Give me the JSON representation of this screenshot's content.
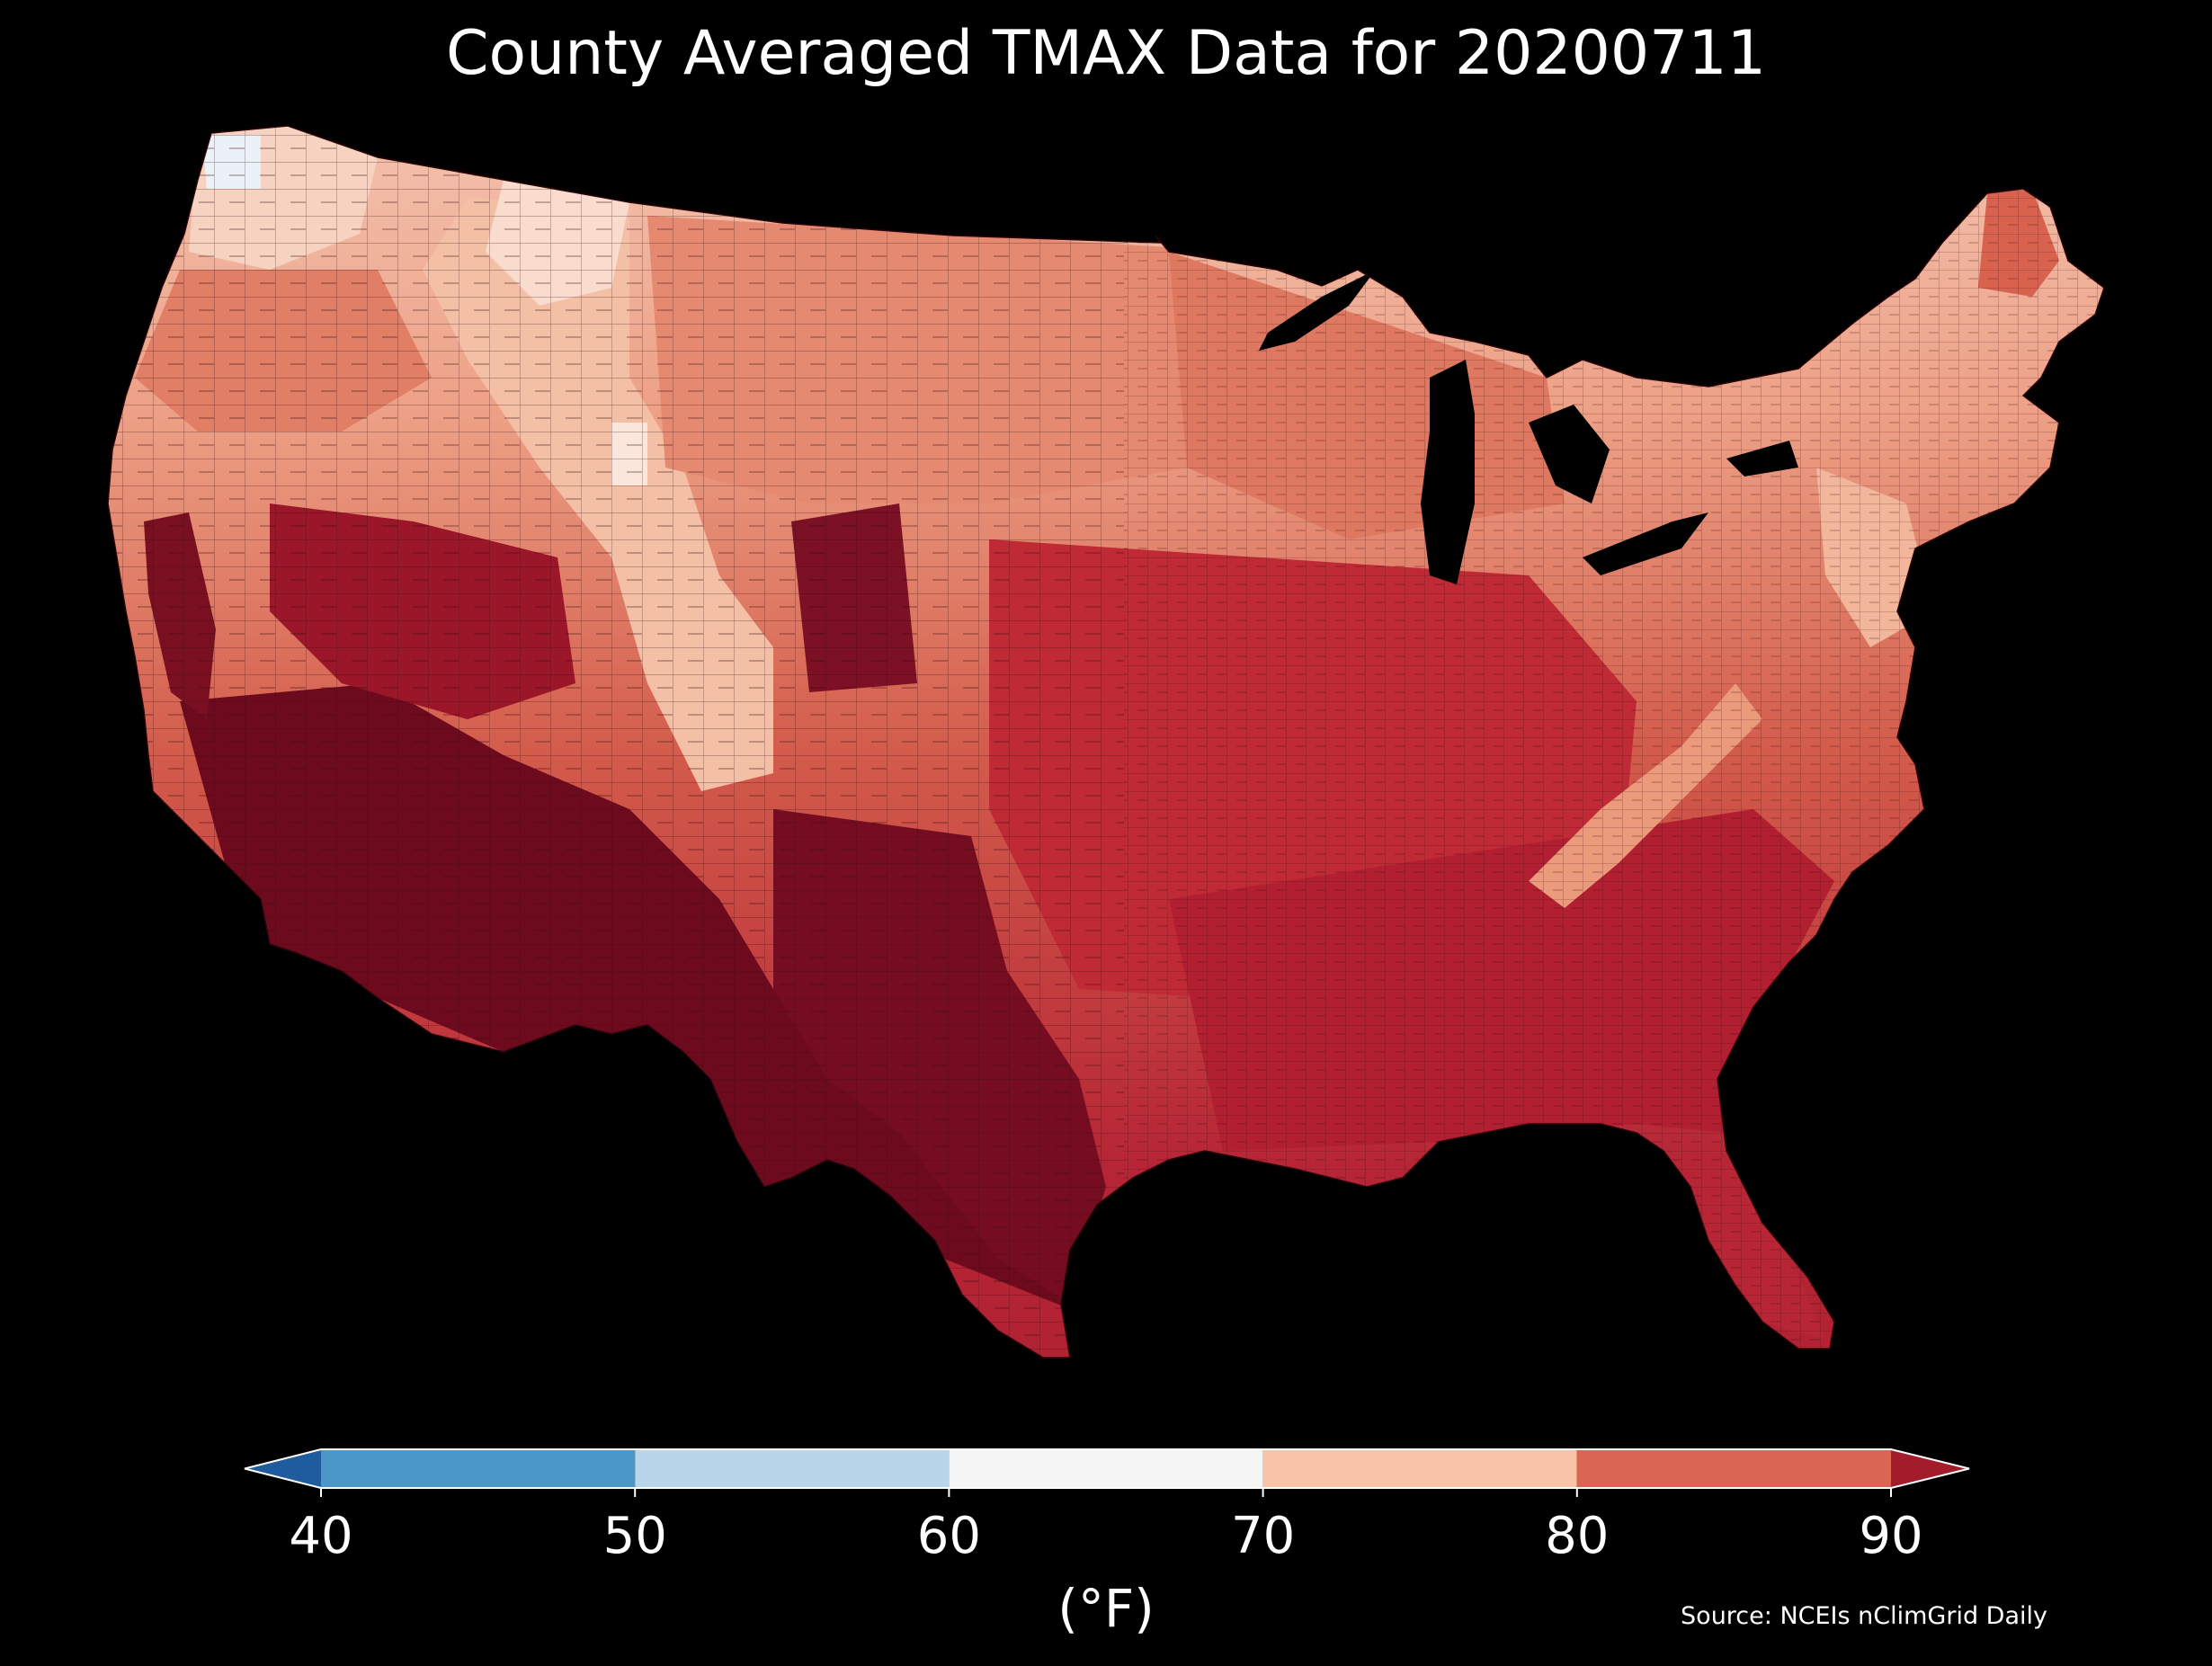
{
  "title": "County Averaged TMAX Data for 20200711",
  "units_label": "(°F)",
  "source": "Source: NCEIs nClimGrid Daily",
  "colorbar": {
    "ticks": [
      "40",
      "50",
      "60",
      "70",
      "80",
      "90"
    ],
    "bins": [
      {
        "from": null,
        "to": 40,
        "color": "#1f5c9e"
      },
      {
        "from": 40,
        "to": 50,
        "color": "#4b98c8"
      },
      {
        "from": 50,
        "to": 60,
        "color": "#b7d6ea"
      },
      {
        "from": 60,
        "to": 70,
        "color": "#f5f5f5"
      },
      {
        "from": 70,
        "to": 80,
        "color": "#f8c3a7"
      },
      {
        "from": 80,
        "to": 90,
        "color": "#da6552"
      },
      {
        "from": 90,
        "to": null,
        "color": "#a31c2c"
      }
    ],
    "extend": "both"
  },
  "map_colors": {
    "background": "#000000",
    "land_hot": "#b82232",
    "land_very_hot": "#6e0a1e",
    "land_warm": "#d8614f",
    "land_mild": "#eea285",
    "land_cool": "#f9d5c2",
    "land_cold": "#eaf2f8",
    "water": "#000000",
    "county_border": "#3a0a10"
  },
  "region": "Contiguous United States"
}
